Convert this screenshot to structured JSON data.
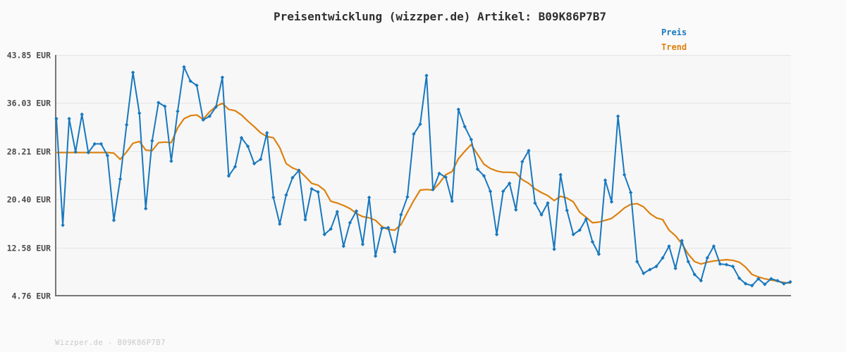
{
  "title": "Preisentwicklung (wizzper.de) Artikel: B09K86P7B7",
  "legend": {
    "price_label": "Preis",
    "trend_label": "Trend"
  },
  "watermark": "Wizzper.de - B09K86P7B7",
  "colors": {
    "price": "#1878be",
    "trend": "#dd810f",
    "grid": "#e4e4e4",
    "axis": "#767676",
    "plot_background": "#f7f7f7",
    "page_background": "#fafafa",
    "title_text": "#2f2f2f",
    "tick_text": "#4a4a4a",
    "watermark_text": "#c9c9c9"
  },
  "chart_data": {
    "type": "line",
    "title": "Preisentwicklung (wizzper.de) Artikel: B09K86P7B7",
    "xlabel": "",
    "ylabel": "EUR",
    "ylim": [
      4.76,
      43.85
    ],
    "grid": "horizontal",
    "legend_position": "top-right",
    "x_tick_labels": [],
    "y_ticks": [
      {
        "value": 43.85,
        "label": "43.85 EUR"
      },
      {
        "value": 36.03,
        "label": "36.03 EUR"
      },
      {
        "value": 28.21,
        "label": "28.21 EUR"
      },
      {
        "value": 20.4,
        "label": "20.40 EUR"
      },
      {
        "value": 12.58,
        "label": "12.58 EUR"
      },
      {
        "value": 4.76,
        "label": "4.76 EUR"
      }
    ],
    "series": [
      {
        "name": "Preis",
        "color": "#1878be",
        "marker": "diamond",
        "line_width": 2,
        "values": [
          33.5,
          16.2,
          33.5,
          28.1,
          34.2,
          28.0,
          29.4,
          29.4,
          27.5,
          17.0,
          23.7,
          32.5,
          41.0,
          34.4,
          18.9,
          29.9,
          36.1,
          35.5,
          26.6,
          34.7,
          41.9,
          39.6,
          38.9,
          33.3,
          33.9,
          35.4,
          40.2,
          24.2,
          25.7,
          30.4,
          29.0,
          26.2,
          26.9,
          31.2,
          20.7,
          16.4,
          21.1,
          23.9,
          25.1,
          17.1,
          22.1,
          21.6,
          14.7,
          15.6,
          18.4,
          12.8,
          16.6,
          18.5,
          13.1,
          20.7,
          11.2,
          15.7,
          15.8,
          11.9,
          17.9,
          20.8,
          31.0,
          32.6,
          40.5,
          22.0,
          24.6,
          24.0,
          20.1,
          35.0,
          32.2,
          30.1,
          25.3,
          24.2,
          21.7,
          14.7,
          21.7,
          23.0,
          18.7,
          26.5,
          28.3,
          19.8,
          17.9,
          19.8,
          12.3,
          24.4,
          18.6,
          14.7,
          15.4,
          17.2,
          13.5,
          11.5,
          23.5,
          20.0,
          33.9,
          24.4,
          21.5,
          10.3,
          8.4,
          9.0,
          9.5,
          10.9,
          12.8,
          9.2,
          13.7,
          10.3,
          8.2,
          7.2,
          10.9,
          12.8,
          9.9,
          9.8,
          9.5,
          7.6,
          6.7,
          6.4,
          7.5,
          6.6,
          7.5,
          7.2,
          6.7,
          7.0
        ]
      },
      {
        "name": "Trend",
        "color": "#dd810f",
        "marker": "none",
        "line_width": 2.2,
        "values": [
          28.0,
          28.0,
          28.0,
          28.0,
          28.0,
          28.0,
          28.0,
          28.0,
          28.0,
          27.9,
          26.9,
          28.1,
          29.5,
          29.8,
          28.4,
          28.3,
          29.6,
          29.7,
          29.6,
          32.0,
          33.5,
          34.0,
          34.1,
          33.4,
          34.6,
          35.5,
          36.0,
          35.0,
          34.8,
          34.1,
          33.1,
          32.2,
          31.2,
          30.6,
          30.4,
          28.8,
          26.2,
          25.5,
          25.1,
          24.1,
          23.0,
          22.7,
          21.9,
          20.1,
          19.8,
          19.4,
          18.9,
          18.1,
          17.6,
          17.4,
          17.0,
          16.0,
          15.5,
          15.4,
          16.3,
          18.3,
          20.2,
          21.9,
          22.0,
          21.9,
          23.0,
          24.4,
          24.9,
          27.0,
          28.2,
          29.3,
          27.7,
          26.1,
          25.4,
          25.0,
          24.8,
          24.8,
          24.7,
          23.6,
          23.0,
          22.1,
          21.5,
          21.0,
          20.2,
          20.9,
          20.6,
          20.0,
          18.3,
          17.5,
          16.6,
          16.7,
          17.0,
          17.3,
          18.1,
          19.0,
          19.6,
          19.7,
          19.2,
          18.1,
          17.4,
          17.1,
          15.4,
          14.5,
          13.2,
          11.5,
          10.3,
          9.9,
          10.2,
          10.4,
          10.5,
          10.6,
          10.5,
          10.2,
          9.4,
          8.2,
          7.8,
          7.5,
          7.3,
          7.1,
          6.9,
          6.8
        ]
      }
    ]
  }
}
